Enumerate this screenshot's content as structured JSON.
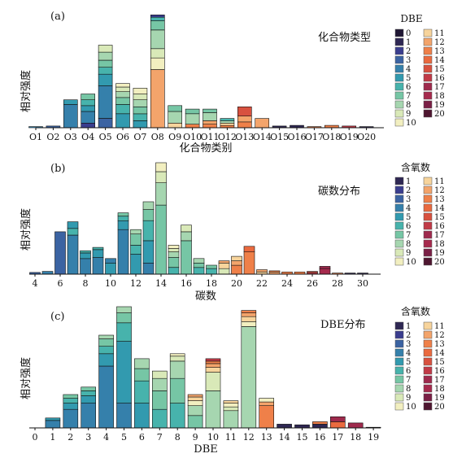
{
  "figure": {
    "colors": {
      "0": "#1f1633",
      "1": "#2e2753",
      "2": "#3a3d8e",
      "3": "#3b63a2",
      "4": "#3580ab",
      "5": "#329aaf",
      "6": "#47b3ac",
      "7": "#76c6a5",
      "8": "#a6d6b0",
      "9": "#d9e9b8",
      "10": "#f2efc0",
      "11": "#f7d49c",
      "12": "#f3a46b",
      "13": "#ef8049",
      "14": "#ea6a3f",
      "15": "#d8513f",
      "16": "#c13a47",
      "17": "#9f2a4d",
      "18": "#a62a4d",
      "19": "#7a1f45",
      "20": "#4e1630"
    },
    "y_label": "相对强度"
  },
  "chart_data": [
    {
      "panel": "(a)",
      "type": "bar",
      "stacked": true,
      "title": "化合物类型",
      "xlabel": "化合物类别",
      "ylabel": "相对强度",
      "legend_title": "DBE",
      "legend_items": [
        "0",
        "1",
        "2",
        "3",
        "4",
        "5",
        "6",
        "7",
        "8",
        "9",
        "10",
        "11",
        "12",
        "13",
        "14",
        "15",
        "16",
        "17",
        "18",
        "19",
        "20"
      ],
      "categories": [
        "O1",
        "O2",
        "O3",
        "O4",
        "O5",
        "O6",
        "O7",
        "O8",
        "O9",
        "O10",
        "O11",
        "O12",
        "O13",
        "O14",
        "O15",
        "O16",
        "O17",
        "O18",
        "O19",
        "O20"
      ],
      "ylim": [
        0,
        1
      ],
      "stacks": [
        [
          [
            4,
            0.01
          ]
        ],
        [
          [
            3,
            0.015
          ]
        ],
        [
          [
            4,
            0.2
          ],
          [
            5,
            0.04
          ]
        ],
        [
          [
            2,
            0.04
          ],
          [
            4,
            0.1
          ],
          [
            5,
            0.05
          ],
          [
            6,
            0.05
          ],
          [
            7,
            0.05
          ]
        ],
        [
          [
            3,
            0.08
          ],
          [
            4,
            0.28
          ],
          [
            5,
            0.1
          ],
          [
            6,
            0.06
          ],
          [
            7,
            0.06
          ],
          [
            8,
            0.07
          ],
          [
            9,
            0.06
          ]
        ],
        [
          [
            5,
            0.12
          ],
          [
            6,
            0.08
          ],
          [
            7,
            0.06
          ],
          [
            8,
            0.05
          ],
          [
            9,
            0.04
          ],
          [
            10,
            0.03
          ]
        ],
        [
          [
            5,
            0.06
          ],
          [
            6,
            0.06
          ],
          [
            7,
            0.06
          ],
          [
            8,
            0.06
          ],
          [
            9,
            0.05
          ],
          [
            10,
            0.05
          ]
        ],
        [
          [
            12,
            0.5
          ],
          [
            10,
            0.1
          ],
          [
            9,
            0.08
          ],
          [
            8,
            0.16
          ],
          [
            7,
            0.08
          ],
          [
            6,
            0.03
          ],
          [
            2,
            0.02
          ]
        ],
        [
          [
            11,
            0.04
          ],
          [
            8,
            0.1
          ],
          [
            7,
            0.05
          ]
        ],
        [
          [
            13,
            0.03
          ],
          [
            8,
            0.09
          ],
          [
            7,
            0.04
          ]
        ],
        [
          [
            13,
            0.03
          ],
          [
            12,
            0.03
          ],
          [
            8,
            0.07
          ],
          [
            7,
            0.03
          ]
        ],
        [
          [
            13,
            0.02
          ],
          [
            11,
            0.02
          ],
          [
            8,
            0.02
          ],
          [
            6,
            0.02
          ]
        ],
        [
          [
            13,
            0.05
          ],
          [
            12,
            0.05
          ],
          [
            15,
            0.08
          ]
        ],
        [
          [
            12,
            0.08
          ]
        ],
        [
          [
            1,
            0.015
          ]
        ],
        [
          [
            1,
            0.02
          ]
        ],
        [
          [
            13,
            0.01
          ]
        ],
        [
          [
            13,
            0.02
          ]
        ],
        [
          [
            16,
            0.015
          ]
        ],
        [
          [
            1,
            0.01
          ]
        ]
      ]
    },
    {
      "panel": "(b)",
      "type": "bar",
      "stacked": true,
      "title": "碳数分布",
      "xlabel": "碳数",
      "ylabel": "相对强度",
      "legend_title": "含氧数",
      "legend_items": [
        "1",
        "2",
        "3",
        "4",
        "5",
        "6",
        "7",
        "8",
        "9",
        "10",
        "11",
        "12",
        "13",
        "14",
        "15",
        "16",
        "17",
        "18",
        "19",
        "20"
      ],
      "categories": [
        4,
        5,
        6,
        7,
        8,
        9,
        10,
        11,
        12,
        13,
        14,
        15,
        16,
        17,
        18,
        19,
        20,
        21,
        22,
        23,
        24,
        25,
        26,
        27,
        28,
        29,
        30
      ],
      "ylim": [
        0,
        1
      ],
      "x_ticks": [
        4,
        6,
        8,
        10,
        12,
        14,
        16,
        18,
        20,
        22,
        24,
        26,
        28,
        30
      ],
      "stacks": [
        [
          [
            3,
            0.015
          ]
        ],
        [
          [
            4,
            0.025
          ]
        ],
        [
          [
            3,
            0.38
          ]
        ],
        [
          [
            4,
            0.35
          ],
          [
            6,
            0.06
          ],
          [
            5,
            0.06
          ]
        ],
        [
          [
            4,
            0.14
          ],
          [
            5,
            0.05
          ],
          [
            6,
            0.02
          ]
        ],
        [
          [
            4,
            0.15
          ],
          [
            5,
            0.07
          ],
          [
            6,
            0.02
          ]
        ],
        [
          [
            5,
            0.1
          ],
          [
            4,
            0.04
          ]
        ],
        [
          [
            4,
            0.4
          ],
          [
            5,
            0.08
          ],
          [
            6,
            0.04
          ],
          [
            7,
            0.03
          ]
        ],
        [
          [
            5,
            0.18
          ],
          [
            6,
            0.08
          ],
          [
            7,
            0.1
          ],
          [
            8,
            0.04
          ]
        ],
        [
          [
            4,
            0.1
          ],
          [
            5,
            0.2
          ],
          [
            6,
            0.18
          ],
          [
            7,
            0.1
          ],
          [
            8,
            0.07
          ]
        ],
        [
          [
            7,
            0.62
          ],
          [
            8,
            0.2
          ],
          [
            9,
            0.1
          ],
          [
            10,
            0.08
          ]
        ],
        [
          [
            6,
            0.06
          ],
          [
            7,
            0.09
          ],
          [
            8,
            0.05
          ],
          [
            9,
            0.03
          ],
          [
            10,
            0.03
          ]
        ],
        [
          [
            7,
            0.3
          ],
          [
            8,
            0.08
          ],
          [
            9,
            0.06
          ]
        ],
        [
          [
            6,
            0.06
          ],
          [
            7,
            0.04
          ],
          [
            8,
            0.04
          ]
        ],
        [
          [
            6,
            0.05
          ],
          [
            7,
            0.03
          ]
        ],
        [
          [
            9,
            0.05
          ],
          [
            11,
            0.05
          ],
          [
            12,
            0.02
          ]
        ],
        [
          [
            13,
            0.08
          ],
          [
            12,
            0.04
          ],
          [
            11,
            0.04
          ]
        ],
        [
          [
            13,
            0.2
          ],
          [
            14,
            0.05
          ]
        ],
        [
          [
            11,
            0.02
          ],
          [
            12,
            0.02
          ]
        ],
        [
          [
            12,
            0.02
          ],
          [
            13,
            0.01
          ]
        ],
        [
          [
            13,
            0.02
          ]
        ],
        [
          [
            13,
            0.02
          ]
        ],
        [
          [
            16,
            0.015
          ],
          [
            15,
            0.01
          ]
        ],
        [
          [
            18,
            0.05
          ],
          [
            17,
            0.02
          ]
        ],
        [
          [
            13,
            0.01
          ]
        ],
        [
          [
            1,
            0.01
          ]
        ],
        [
          [
            1,
            0.01
          ]
        ]
      ]
    },
    {
      "panel": "(c)",
      "type": "bar",
      "stacked": true,
      "title": "DBE分布",
      "xlabel": "DBE",
      "ylabel": "相对强度",
      "legend_title": "含氧数",
      "legend_items": [
        "1",
        "2",
        "3",
        "4",
        "5",
        "6",
        "7",
        "8",
        "9",
        "10",
        "11",
        "12",
        "13",
        "14",
        "15",
        "16",
        "17",
        "18",
        "19",
        "20"
      ],
      "categories": [
        0,
        1,
        2,
        3,
        4,
        5,
        6,
        7,
        8,
        9,
        10,
        11,
        12,
        13,
        14,
        15,
        16,
        17,
        18,
        19
      ],
      "ylim": [
        0,
        1
      ],
      "stacks": [
        [],
        [
          [
            4,
            0.06
          ],
          [
            5,
            0.02
          ]
        ],
        [
          [
            4,
            0.15
          ],
          [
            5,
            0.05
          ],
          [
            6,
            0.04
          ],
          [
            7,
            0.03
          ]
        ],
        [
          [
            4,
            0.2
          ],
          [
            5,
            0.06
          ],
          [
            6,
            0.04
          ],
          [
            7,
            0.03
          ]
        ],
        [
          [
            4,
            0.5
          ],
          [
            5,
            0.1
          ],
          [
            6,
            0.06
          ],
          [
            7,
            0.06
          ],
          [
            8,
            0.03
          ]
        ],
        [
          [
            4,
            0.2
          ],
          [
            5,
            0.5
          ],
          [
            6,
            0.15
          ],
          [
            7,
            0.08
          ],
          [
            8,
            0.05
          ]
        ],
        [
          [
            5,
            0.2
          ],
          [
            6,
            0.18
          ],
          [
            7,
            0.1
          ],
          [
            8,
            0.08
          ]
        ],
        [
          [
            6,
            0.15
          ],
          [
            7,
            0.15
          ],
          [
            8,
            0.1
          ],
          [
            9,
            0.06
          ]
        ],
        [
          [
            6,
            0.2
          ],
          [
            7,
            0.2
          ],
          [
            8,
            0.14
          ],
          [
            9,
            0.04
          ],
          [
            10,
            0.02
          ]
        ],
        [
          [
            7,
            0.1
          ],
          [
            8,
            0.08
          ],
          [
            10,
            0.04
          ],
          [
            11,
            0.03
          ],
          [
            12,
            0.02
          ]
        ],
        [
          [
            8,
            0.3
          ],
          [
            9,
            0.15
          ],
          [
            11,
            0.04
          ],
          [
            12,
            0.03
          ],
          [
            13,
            0.02
          ],
          [
            16,
            0.02
          ]
        ],
        [
          [
            8,
            0.14
          ],
          [
            9,
            0.03
          ],
          [
            10,
            0.03
          ],
          [
            11,
            0.02
          ]
        ],
        [
          [
            8,
            0.82
          ],
          [
            10,
            0.04
          ],
          [
            11,
            0.04
          ],
          [
            12,
            0.03
          ],
          [
            13,
            0.02
          ]
        ],
        [
          [
            13,
            0.18
          ],
          [
            12,
            0.03
          ],
          [
            10,
            0.03
          ]
        ],
        [
          [
            1,
            0.03
          ]
        ],
        [
          [
            1,
            0.025
          ]
        ],
        [
          [
            1,
            0.03
          ],
          [
            13,
            0.02
          ]
        ],
        [
          [
            14,
            0.05
          ],
          [
            17,
            0.04
          ]
        ],
        [
          [
            17,
            0.04
          ]
        ],
        [
          [
            1,
            0.005
          ]
        ]
      ]
    }
  ]
}
